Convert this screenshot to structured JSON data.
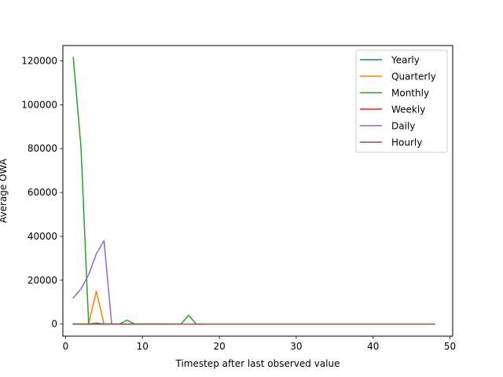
{
  "chart_data": {
    "type": "line",
    "title": "",
    "xlabel": "Timestep after last observed value",
    "ylabel": "Average OWA",
    "xlim": [
      -0.35,
      50.35
    ],
    "ylim": [
      -5500,
      127000
    ],
    "xticks": [
      0,
      10,
      20,
      30,
      40,
      50
    ],
    "yticks": [
      0,
      20000,
      40000,
      60000,
      80000,
      100000,
      120000
    ],
    "legend_position": "top-right",
    "grid": false,
    "series": [
      {
        "name": "Yearly",
        "color": "#1f77b4",
        "x": [
          1,
          2,
          3,
          4,
          5,
          6
        ],
        "y": [
          0,
          0,
          0,
          0,
          0,
          0
        ]
      },
      {
        "name": "Quarterly",
        "color": "#ff7f0e",
        "x": [
          1,
          2,
          3,
          4,
          5,
          6,
          7,
          8
        ],
        "y": [
          0,
          0,
          0,
          15000,
          0,
          0,
          0,
          0
        ]
      },
      {
        "name": "Monthly",
        "color": "#2ca02c",
        "x": [
          1,
          2,
          3,
          4,
          5,
          6,
          7,
          8,
          9,
          10,
          11,
          12,
          13,
          14,
          15,
          16,
          17,
          18
        ],
        "y": [
          121500,
          81000,
          0,
          500,
          0,
          0,
          0,
          1800,
          0,
          0,
          0,
          0,
          0,
          0,
          0,
          4000,
          0,
          0
        ]
      },
      {
        "name": "Weekly",
        "color": "#d62728",
        "x": [
          1,
          2,
          3,
          4,
          5,
          6,
          7,
          8,
          9,
          10,
          11,
          12,
          13
        ],
        "y": [
          0,
          0,
          0,
          0,
          0,
          0,
          0,
          0,
          0,
          0,
          0,
          0,
          0
        ]
      },
      {
        "name": "Daily",
        "color": "#9467bd",
        "x": [
          1,
          2,
          3,
          4,
          5,
          6,
          7,
          8,
          9,
          10,
          11,
          12,
          13,
          14
        ],
        "y": [
          12000,
          16000,
          22500,
          32000,
          38000,
          0,
          0,
          0,
          0,
          0,
          0,
          0,
          0,
          0
        ]
      },
      {
        "name": "Hourly",
        "color": "#8c564b",
        "x": [
          1,
          4,
          8,
          12,
          16,
          20,
          24,
          28,
          32,
          36,
          40,
          44,
          48
        ],
        "y": [
          0,
          0,
          0,
          0,
          0,
          0,
          0,
          0,
          0,
          0,
          0,
          0,
          0
        ]
      }
    ]
  }
}
